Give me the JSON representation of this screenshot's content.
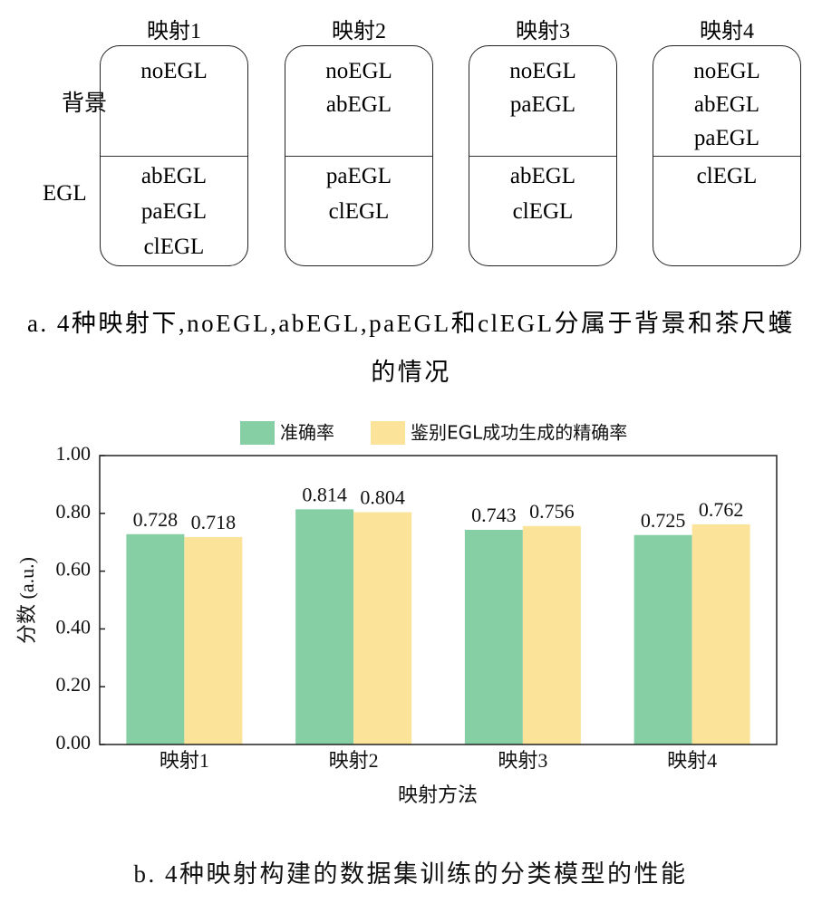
{
  "diagram": {
    "row_labels": [
      "背景",
      "EGL"
    ],
    "mappings": [
      {
        "title": "映射1",
        "background": [
          "noEGL"
        ],
        "egl": [
          "abEGL",
          "paEGL",
          "clEGL"
        ]
      },
      {
        "title": "映射2",
        "background": [
          "noEGL",
          "abEGL"
        ],
        "egl": [
          "paEGL",
          "clEGL"
        ]
      },
      {
        "title": "映射3",
        "background": [
          "noEGL",
          "paEGL"
        ],
        "egl": [
          "abEGL",
          "clEGL"
        ]
      },
      {
        "title": "映射4",
        "background": [
          "noEGL",
          "abEGL",
          "paEGL"
        ],
        "egl": [
          "clEGL"
        ]
      }
    ],
    "caption": "a. 4种映射下,noEGL,abEGL,paEGL和clEGL分属于背景和茶尺蠖的情况"
  },
  "chart_data": {
    "type": "bar",
    "categories": [
      "映射1",
      "映射2",
      "映射3",
      "映射4"
    ],
    "series": [
      {
        "name": "准确率",
        "color": "#86cfa5",
        "values": [
          0.728,
          0.814,
          0.743,
          0.725
        ]
      },
      {
        "name": "鉴别EGL成功生成的精确率",
        "color": "#fbe49a",
        "values": [
          0.718,
          0.804,
          0.756,
          0.762
        ]
      }
    ],
    "xlabel": "映射方法",
    "ylabel": "分数 (a.u.)",
    "ylim": [
      0,
      1
    ],
    "yticks": [
      {
        "value": 0,
        "label": "0.00"
      },
      {
        "value": 0.2,
        "label": "0.20"
      },
      {
        "value": 0.4,
        "label": "0.40"
      },
      {
        "value": 0.6,
        "label": "0.60"
      },
      {
        "value": 0.8,
        "label": "0.80"
      },
      {
        "value": 1,
        "label": "1.00"
      }
    ],
    "legend": "top",
    "caption": "b. 4种映射构建的数据集训练的分类模型的性能"
  }
}
